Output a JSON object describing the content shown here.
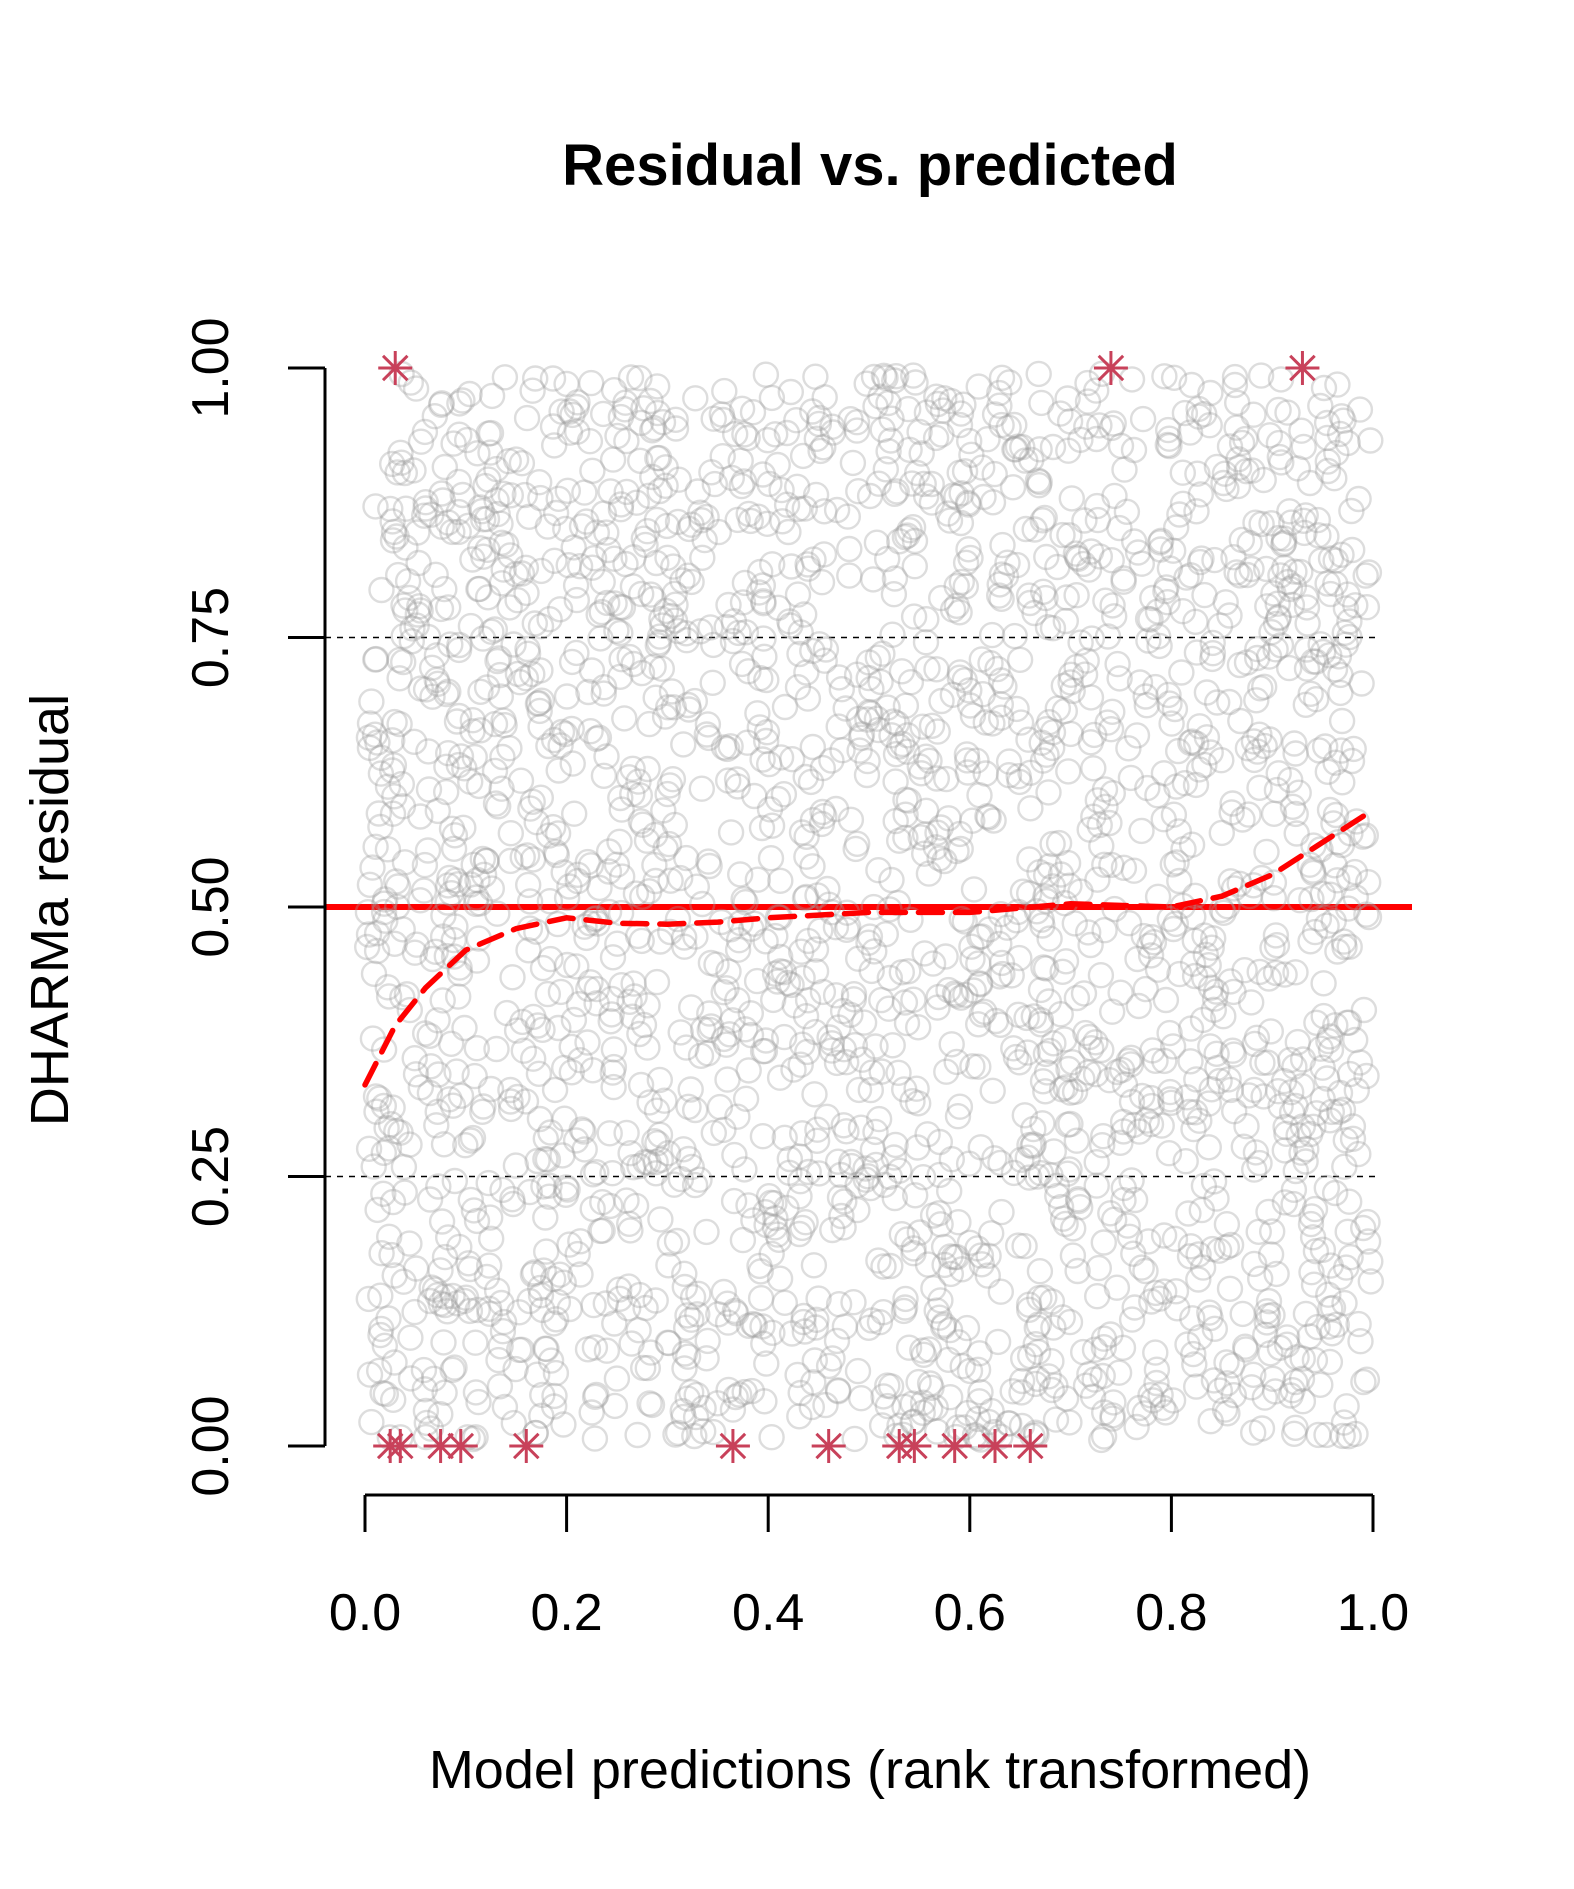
{
  "chart_data": {
    "type": "scatter",
    "title": "Residual vs. predicted",
    "xlabel": "Model predictions (rank transformed)",
    "ylabel": "DHARMa residual",
    "xlim": [
      0,
      1
    ],
    "ylim": [
      0,
      1
    ],
    "x_ticks": [
      "0.0",
      "0.2",
      "0.4",
      "0.6",
      "0.8",
      "1.0"
    ],
    "y_ticks": [
      "0.00",
      "0.25",
      "0.50",
      "0.75",
      "1.00"
    ],
    "reference_lines": [
      {
        "y": 0.25,
        "style": "dashed",
        "color": "#000000"
      },
      {
        "y": 0.5,
        "style": "solid",
        "color": "#ff0000"
      },
      {
        "y": 0.75,
        "style": "dashed",
        "color": "#000000"
      }
    ],
    "point_cloud": {
      "description_count": 2500,
      "distribution": "approximately uniform over [0,1] x [0,1]",
      "marker": "open circle",
      "color": "#9e9e9e"
    },
    "outliers": {
      "marker": "asterisk",
      "color": "#c8415a",
      "points": [
        {
          "x": 0.03,
          "y": 1.0
        },
        {
          "x": 0.74,
          "y": 1.0
        },
        {
          "x": 0.93,
          "y": 1.0
        },
        {
          "x": 0.025,
          "y": 0.0
        },
        {
          "x": 0.035,
          "y": 0.0
        },
        {
          "x": 0.075,
          "y": 0.0
        },
        {
          "x": 0.095,
          "y": 0.0
        },
        {
          "x": 0.16,
          "y": 0.0
        },
        {
          "x": 0.365,
          "y": 0.0
        },
        {
          "x": 0.46,
          "y": 0.0
        },
        {
          "x": 0.53,
          "y": 0.0
        },
        {
          "x": 0.545,
          "y": 0.0
        },
        {
          "x": 0.585,
          "y": 0.0
        },
        {
          "x": 0.625,
          "y": 0.0
        },
        {
          "x": 0.66,
          "y": 0.0
        }
      ]
    },
    "smooth_curve": {
      "style": "dashed",
      "color": "#ff0000",
      "x": [
        0.0,
        0.03,
        0.06,
        0.1,
        0.15,
        0.2,
        0.25,
        0.3,
        0.35,
        0.4,
        0.5,
        0.6,
        0.7,
        0.8,
        0.85,
        0.9,
        0.95,
        1.0
      ],
      "y": [
        0.335,
        0.39,
        0.425,
        0.46,
        0.48,
        0.49,
        0.485,
        0.484,
        0.486,
        0.49,
        0.495,
        0.495,
        0.503,
        0.5,
        0.51,
        0.53,
        0.56,
        0.59
      ]
    },
    "colors": {
      "points": "#9e9e9e",
      "outliers": "#c8415a",
      "reference_line": "#ff0000",
      "smooth": "#ff0000"
    }
  }
}
